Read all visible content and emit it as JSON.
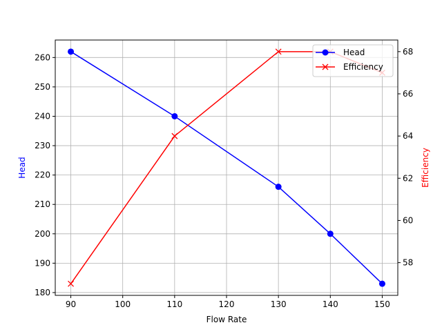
{
  "chart_data": {
    "type": "line",
    "title": "",
    "xlabel": "Flow Rate",
    "ylabel": "Head",
    "y2label": "Efficiency",
    "x": [
      90,
      110,
      130,
      140,
      150
    ],
    "series": [
      {
        "name": "Head",
        "axis": "left",
        "color": "#0000ff",
        "marker": "o",
        "values": [
          262,
          240,
          216,
          200,
          183
        ]
      },
      {
        "name": "Efficiency",
        "axis": "right",
        "color": "#ff0000",
        "marker": "x",
        "values": [
          57,
          64,
          68,
          68,
          67
        ]
      }
    ],
    "xticks": [
      90,
      100,
      110,
      120,
      130,
      140,
      150
    ],
    "yticks": [
      180,
      190,
      200,
      210,
      220,
      230,
      240,
      250,
      260
    ],
    "y2ticks": [
      58,
      60,
      62,
      64,
      66,
      68
    ],
    "xlim": [
      87,
      153
    ],
    "ylim": [
      179.05,
      265.95
    ],
    "y2lim": [
      56.45,
      68.55
    ],
    "grid": true,
    "legend_position": "upper right"
  }
}
